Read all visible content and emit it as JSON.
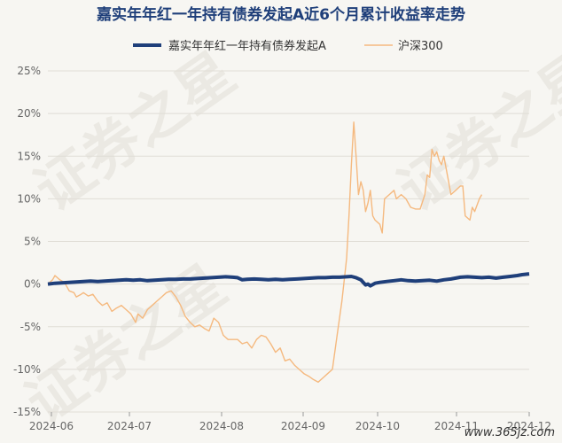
{
  "chart_data": {
    "type": "line",
    "title": "嘉实年年红一年持有债券发起A近6个月累计收益率走势",
    "xlabel": "",
    "ylabel": "",
    "x_ticks": [
      "2024-06",
      "2024-07",
      "2024-08",
      "2024-09",
      "2024-10",
      "2024-11",
      "2024-12"
    ],
    "y_ticks": [
      "25%",
      "20%",
      "15%",
      "10%",
      "5%",
      "0%",
      "-5%",
      "-10%",
      "-15%"
    ],
    "ylim": [
      -15,
      25
    ],
    "grid": true,
    "legend_position": "top",
    "series": [
      {
        "name": "嘉实年年红一年持有债券发起A",
        "color": "#1f3f7a",
        "points": [
          [
            0,
            0
          ],
          [
            3,
            0.1
          ],
          [
            6,
            0.15
          ],
          [
            9,
            0.2
          ],
          [
            12,
            0.25
          ],
          [
            15,
            0.3
          ],
          [
            18,
            0.35
          ],
          [
            21,
            0.3
          ],
          [
            24,
            0.35
          ],
          [
            27,
            0.4
          ],
          [
            30,
            0.45
          ],
          [
            33,
            0.5
          ],
          [
            36,
            0.45
          ],
          [
            39,
            0.5
          ],
          [
            42,
            0.4
          ],
          [
            45,
            0.45
          ],
          [
            48,
            0.5
          ],
          [
            51,
            0.55
          ],
          [
            54,
            0.55
          ],
          [
            57,
            0.6
          ],
          [
            60,
            0.6
          ],
          [
            63,
            0.65
          ],
          [
            66,
            0.7
          ],
          [
            69,
            0.75
          ],
          [
            72,
            0.8
          ],
          [
            75,
            0.85
          ],
          [
            78,
            0.8
          ],
          [
            80,
            0.75
          ],
          [
            82,
            0.5
          ],
          [
            84,
            0.55
          ],
          [
            87,
            0.6
          ],
          [
            90,
            0.55
          ],
          [
            93,
            0.5
          ],
          [
            96,
            0.55
          ],
          [
            99,
            0.5
          ],
          [
            102,
            0.55
          ],
          [
            105,
            0.6
          ],
          [
            108,
            0.65
          ],
          [
            111,
            0.7
          ],
          [
            114,
            0.75
          ],
          [
            117,
            0.75
          ],
          [
            120,
            0.8
          ],
          [
            123,
            0.8
          ],
          [
            126,
            0.85
          ],
          [
            128,
            0.9
          ],
          [
            130,
            0.75
          ],
          [
            132,
            0.5
          ],
          [
            133,
            0.2
          ],
          [
            134,
            -0.1
          ],
          [
            135,
            0.0
          ],
          [
            136,
            -0.2
          ],
          [
            138,
            0.1
          ],
          [
            140,
            0.2
          ],
          [
            143,
            0.3
          ],
          [
            146,
            0.4
          ],
          [
            149,
            0.5
          ],
          [
            152,
            0.4
          ],
          [
            155,
            0.35
          ],
          [
            158,
            0.4
          ],
          [
            161,
            0.45
          ],
          [
            164,
            0.35
          ],
          [
            167,
            0.5
          ],
          [
            170,
            0.6
          ],
          [
            172,
            0.7
          ],
          [
            174,
            0.8
          ],
          [
            177,
            0.85
          ],
          [
            180,
            0.8
          ],
          [
            183,
            0.75
          ],
          [
            186,
            0.8
          ],
          [
            189,
            0.7
          ],
          [
            192,
            0.8
          ],
          [
            195,
            0.9
          ],
          [
            198,
            1.0
          ],
          [
            200,
            1.1
          ],
          [
            203,
            1.2
          ]
        ]
      },
      {
        "name": "沪深300",
        "color": "#f5b97f",
        "points": [
          [
            0,
            0
          ],
          [
            2,
            0.5
          ],
          [
            3,
            1.0
          ],
          [
            5,
            0.5
          ],
          [
            7,
            0.2
          ],
          [
            9,
            -0.8
          ],
          [
            11,
            -1.0
          ],
          [
            12,
            -1.5
          ],
          [
            14,
            -1.2
          ],
          [
            15,
            -1.0
          ],
          [
            17,
            -1.4
          ],
          [
            19,
            -1.2
          ],
          [
            21,
            -2.0
          ],
          [
            23,
            -2.5
          ],
          [
            25,
            -2.2
          ],
          [
            27,
            -3.2
          ],
          [
            29,
            -2.8
          ],
          [
            31,
            -2.5
          ],
          [
            33,
            -3.0
          ],
          [
            35,
            -3.5
          ],
          [
            37,
            -4.5
          ],
          [
            38,
            -3.5
          ],
          [
            40,
            -4.0
          ],
          [
            42,
            -3.0
          ],
          [
            44,
            -2.5
          ],
          [
            46,
            -2.0
          ],
          [
            48,
            -1.5
          ],
          [
            50,
            -1.0
          ],
          [
            52,
            -0.8
          ],
          [
            54,
            -1.5
          ],
          [
            56,
            -2.5
          ],
          [
            58,
            -3.8
          ],
          [
            60,
            -4.5
          ],
          [
            62,
            -5.0
          ],
          [
            64,
            -4.8
          ],
          [
            66,
            -5.2
          ],
          [
            68,
            -5.5
          ],
          [
            70,
            -4.0
          ],
          [
            72,
            -4.5
          ],
          [
            74,
            -6.0
          ],
          [
            76,
            -6.5
          ],
          [
            78,
            -6.5
          ],
          [
            80,
            -6.5
          ],
          [
            82,
            -7.0
          ],
          [
            84,
            -6.8
          ],
          [
            86,
            -7.5
          ],
          [
            88,
            -6.5
          ],
          [
            90,
            -6.0
          ],
          [
            92,
            -6.2
          ],
          [
            94,
            -7.0
          ],
          [
            96,
            -8.0
          ],
          [
            98,
            -7.5
          ],
          [
            100,
            -9.0
          ],
          [
            102,
            -8.8
          ],
          [
            104,
            -9.5
          ],
          [
            106,
            -10.0
          ],
          [
            108,
            -10.5
          ],
          [
            110,
            -10.8
          ],
          [
            112,
            -11.2
          ],
          [
            114,
            -11.5
          ],
          [
            116,
            -11.0
          ],
          [
            118,
            -10.5
          ],
          [
            120,
            -10.0
          ],
          [
            122,
            -6.0
          ],
          [
            124,
            -2.0
          ],
          [
            126,
            3.0
          ],
          [
            127,
            8.0
          ],
          [
            128,
            14.0
          ],
          [
            129,
            19.0
          ],
          [
            130,
            15.0
          ],
          [
            131,
            10.5
          ],
          [
            132,
            12.0
          ],
          [
            133,
            11.0
          ],
          [
            134,
            8.5
          ],
          [
            135,
            9.5
          ],
          [
            136,
            11.0
          ],
          [
            137,
            8.0
          ],
          [
            138,
            7.5
          ],
          [
            140,
            7.0
          ],
          [
            141,
            6.0
          ],
          [
            142,
            10.0
          ],
          [
            144,
            10.5
          ],
          [
            146,
            11.0
          ],
          [
            147,
            10.0
          ],
          [
            149,
            10.5
          ],
          [
            151,
            10.0
          ],
          [
            153,
            9.0
          ],
          [
            155,
            8.8
          ],
          [
            157,
            8.8
          ],
          [
            159,
            10.5
          ],
          [
            160,
            12.8
          ],
          [
            161,
            12.5
          ],
          [
            162,
            15.8
          ],
          [
            163,
            15.0
          ],
          [
            164,
            15.5
          ],
          [
            165,
            14.5
          ],
          [
            166,
            14.0
          ],
          [
            167,
            15.0
          ],
          [
            168,
            13.5
          ],
          [
            169,
            12.0
          ],
          [
            170,
            10.5
          ],
          [
            172,
            11.0
          ],
          [
            174,
            11.5
          ],
          [
            175,
            11.5
          ],
          [
            176,
            8.0
          ],
          [
            178,
            7.5
          ],
          [
            179,
            9.0
          ],
          [
            180,
            8.5
          ],
          [
            182,
            10.0
          ],
          [
            183,
            10.5
          ]
        ]
      }
    ]
  },
  "watermark": "证券之星",
  "site_logo": "www.365jz.com"
}
